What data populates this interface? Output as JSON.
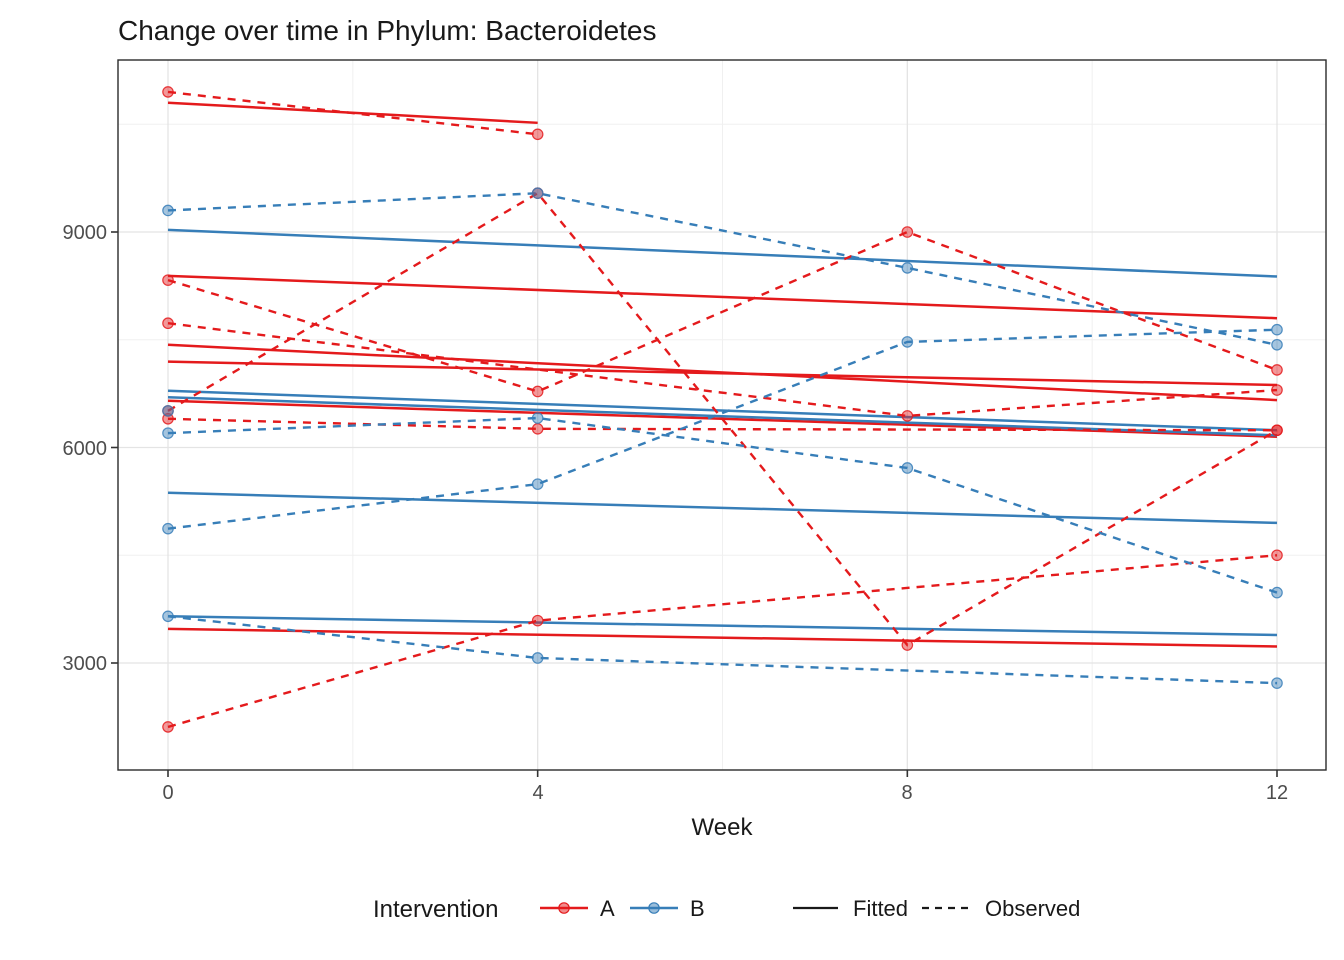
{
  "chart_data": {
    "type": "line",
    "title": "Change over time in Phylum: Bacteroidetes",
    "xlabel": "Week",
    "ylabel": "",
    "x_ticks": [
      "0",
      "4",
      "8",
      "12"
    ],
    "x_tick_values": [
      0,
      4,
      8,
      12
    ],
    "y_ticks": [
      "3000",
      "6000",
      "9000"
    ],
    "y_tick_values": [
      3000,
      6000,
      9000
    ],
    "y_minor_values": [
      4500,
      7500,
      10500
    ],
    "x_minor_values": [
      2,
      6,
      10
    ],
    "xlim": [
      -0.55,
      12.55
    ],
    "ylim": [
      1510,
      11395
    ],
    "grid": true,
    "legend_position": "bottom",
    "legend": {
      "title": "Intervention",
      "groups": [
        {
          "label": "A",
          "color": "#E41A1C"
        },
        {
          "label": "B",
          "color": "#377EB8"
        }
      ],
      "linetypes": [
        {
          "label": "Fitted",
          "style": "solid"
        },
        {
          "label": "Observed",
          "style": "dashed"
        }
      ]
    },
    "colors": {
      "A": "#E41A1C",
      "B": "#377EB8"
    },
    "series": [
      {
        "id": "A1",
        "group": "A",
        "observed": [
          [
            0,
            10950
          ],
          [
            4,
            10360
          ]
        ],
        "fitted": [
          [
            0,
            10800
          ],
          [
            4,
            10520
          ]
        ]
      },
      {
        "id": "A2",
        "group": "A",
        "observed": [
          [
            0,
            8330
          ],
          [
            4,
            6780
          ],
          [
            8,
            9000
          ],
          [
            12,
            7080
          ]
        ],
        "fitted": [
          [
            0,
            8390
          ],
          [
            12,
            7800
          ]
        ]
      },
      {
        "id": "A3",
        "group": "A",
        "observed": [
          [
            0,
            7730
          ],
          [
            8,
            6440
          ],
          [
            12,
            6800
          ]
        ],
        "fitted": [
          [
            0,
            7430
          ],
          [
            12,
            6660
          ]
        ]
      },
      {
        "id": "A4",
        "group": "A",
        "observed": [
          [
            0,
            6510
          ],
          [
            4,
            9540
          ],
          [
            8,
            3250
          ],
          [
            12,
            6240
          ]
        ],
        "fitted": [
          [
            0,
            7195
          ],
          [
            12,
            6870
          ]
        ]
      },
      {
        "id": "A5",
        "group": "A",
        "observed": [
          [
            0,
            6400
          ],
          [
            4,
            6260
          ],
          [
            12,
            6240
          ]
        ],
        "fitted": [
          [
            0,
            6650
          ],
          [
            12,
            6150
          ]
        ]
      },
      {
        "id": "A6",
        "group": "A",
        "observed": [
          [
            0,
            2110
          ],
          [
            4,
            3590
          ],
          [
            12,
            4500
          ]
        ],
        "fitted": [
          [
            0,
            3475
          ],
          [
            12,
            3230
          ]
        ]
      },
      {
        "id": "B1",
        "group": "B",
        "observed": [
          [
            0,
            9300
          ],
          [
            4,
            9540
          ],
          [
            8,
            8500
          ],
          [
            12,
            7430
          ]
        ],
        "fitted": [
          [
            0,
            9030
          ],
          [
            12,
            8380
          ]
        ]
      },
      {
        "id": "B2",
        "group": "B",
        "observed": [
          [
            0,
            6200
          ],
          [
            4,
            6410
          ],
          [
            8,
            5715
          ],
          [
            12,
            3980
          ]
        ],
        "fitted": [
          [
            0,
            6790
          ],
          [
            12,
            6240
          ]
        ]
      },
      {
        "id": "B3",
        "group": "B",
        "observed": [
          [
            0,
            6510
          ]
        ],
        "fitted": [
          [
            0,
            6700
          ],
          [
            12,
            6170
          ]
        ]
      },
      {
        "id": "B4",
        "group": "B",
        "observed": [
          [
            0,
            4870
          ],
          [
            4,
            5490
          ],
          [
            8,
            7470
          ],
          [
            12,
            7640
          ]
        ],
        "fitted": [
          [
            0,
            5370
          ],
          [
            12,
            4950
          ]
        ]
      },
      {
        "id": "B5",
        "group": "B",
        "observed": [
          [
            0,
            3650
          ],
          [
            4,
            3070
          ],
          [
            12,
            2720
          ]
        ],
        "fitted": [
          [
            0,
            3650
          ],
          [
            12,
            3390
          ]
        ]
      }
    ]
  }
}
